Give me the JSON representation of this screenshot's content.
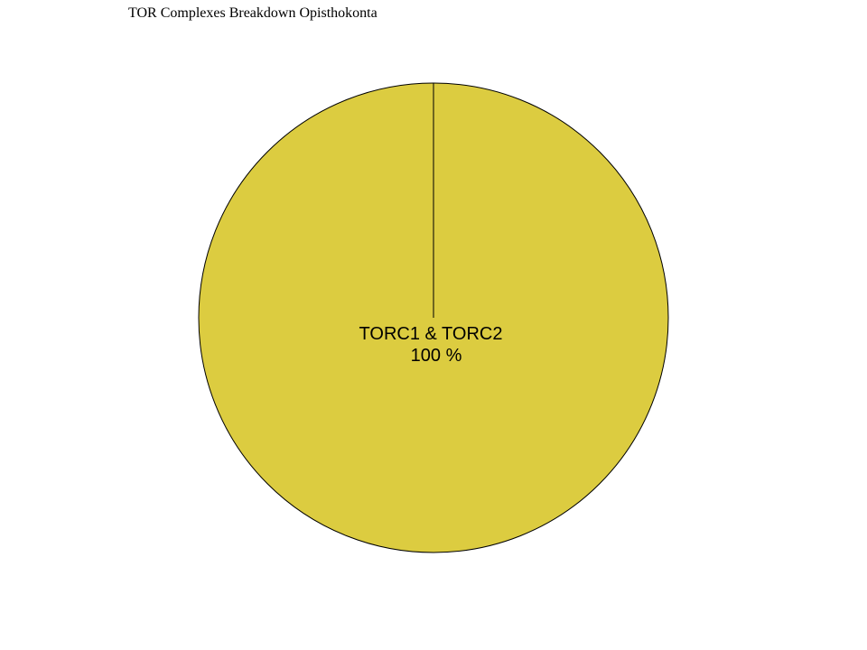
{
  "chart_data": {
    "type": "pie",
    "title": "TOR Complexes Breakdown Opisthokonta",
    "slices": [
      {
        "label": "TORC1 & TORC2",
        "value": 100,
        "percent_label": "100 %",
        "color": "#dccc40"
      }
    ],
    "colors": {
      "outline": "#000000",
      "background": "#ffffff"
    }
  }
}
